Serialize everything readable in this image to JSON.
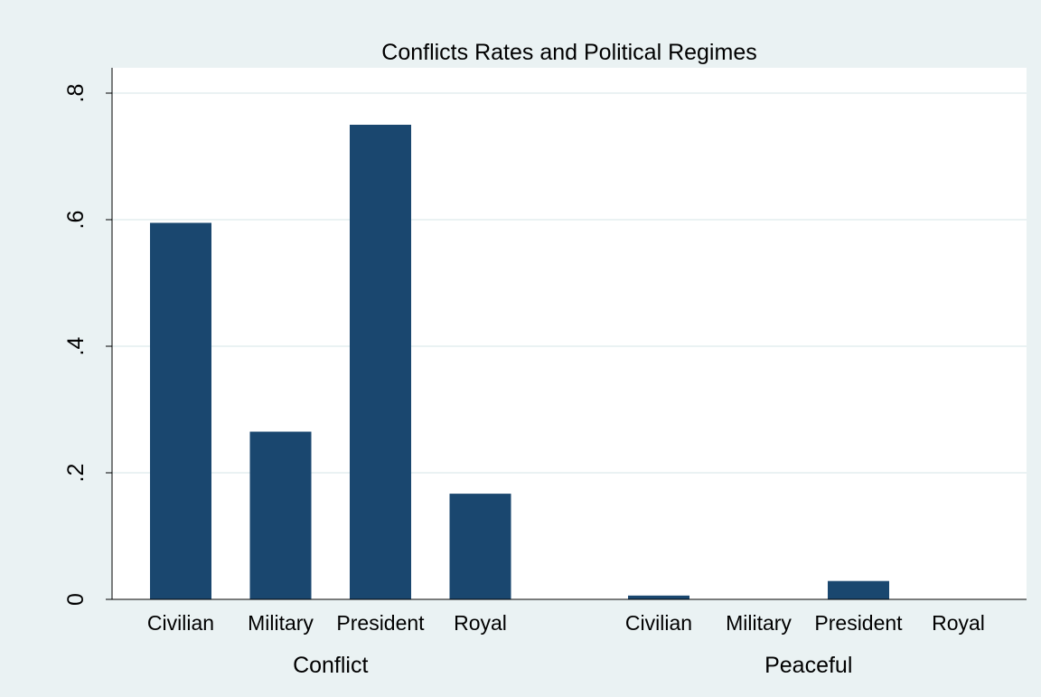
{
  "colors": {
    "outer_background": "#eaf2f3",
    "plot_background": "#ffffff",
    "gridline": "#eaf2f3",
    "bar": "#1a476f",
    "axis": "#000000",
    "text": "#000000"
  },
  "chart_data": {
    "type": "bar",
    "title": "Conflicts Rates and Political Regimes",
    "xlabel": "",
    "ylabel": "",
    "ylim": [
      0,
      0.8
    ],
    "yticks": [
      {
        "value": 0,
        "label": "0"
      },
      {
        "value": 0.2,
        "label": ".2"
      },
      {
        "value": 0.4,
        "label": ".4"
      },
      {
        "value": 0.6,
        "label": ".6"
      },
      {
        "value": 0.8,
        "label": ".8"
      }
    ],
    "grid": true,
    "groups": [
      {
        "label": "Conflict",
        "categories": [
          "Civilian",
          "Military",
          "President",
          "Royal"
        ],
        "values": [
          0.595,
          0.265,
          0.75,
          0.167
        ]
      },
      {
        "label": "Peaceful",
        "categories": [
          "Civilian",
          "Military",
          "President",
          "Royal"
        ],
        "values": [
          0.006,
          0,
          0.029,
          0
        ]
      }
    ]
  }
}
